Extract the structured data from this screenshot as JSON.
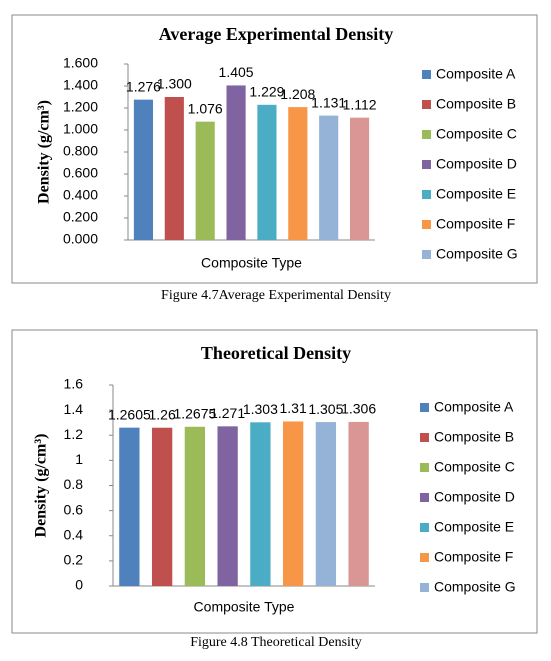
{
  "chart_data": [
    {
      "type": "bar",
      "title": "Average Experimental Density",
      "y_label": "Density (g/cm³)",
      "x_label": "Composite Type",
      "caption": "Figure 4.7Average Experimental Density",
      "ylim": [
        0,
        1.6
      ],
      "yticks": [
        {
          "value": 0,
          "label": "0.000"
        },
        {
          "value": 0.2,
          "label": "0.200"
        },
        {
          "value": 0.4,
          "label": "0.400"
        },
        {
          "value": 0.6,
          "label": "0.600"
        },
        {
          "value": 0.8,
          "label": "0.800"
        },
        {
          "value": 1.0,
          "label": "1.000"
        },
        {
          "value": 1.2,
          "label": "1.200"
        },
        {
          "value": 1.4,
          "label": "1.400"
        },
        {
          "value": 1.6,
          "label": "1.600"
        }
      ],
      "series": [
        {
          "name": "Composite A",
          "color": "#4f81bd",
          "values": [
            1.276
          ],
          "value_labels": [
            "1.276"
          ]
        },
        {
          "name": "Composite B",
          "color": "#c0504d",
          "values": [
            1.3
          ],
          "value_labels": [
            "1.300"
          ]
        },
        {
          "name": "Composite C",
          "color": "#9bbb59",
          "values": [
            1.076
          ],
          "value_labels": [
            "1.076"
          ]
        },
        {
          "name": "Composite D",
          "color": "#8064a2",
          "values": [
            1.405
          ],
          "value_labels": [
            "1.405"
          ]
        },
        {
          "name": "Composite E",
          "color": "#4bacc6",
          "values": [
            1.229
          ],
          "value_labels": [
            "1.229"
          ]
        },
        {
          "name": "Composite F",
          "color": "#f79646",
          "values": [
            1.208
          ],
          "value_labels": [
            "1.208"
          ]
        },
        {
          "name": "Composite G",
          "color": "#95b3d7",
          "values": [
            1.131
          ],
          "value_labels": [
            "1.131"
          ]
        },
        {
          "name": null,
          "color": "#d99694",
          "values": [
            1.112
          ],
          "value_labels": [
            "1.112"
          ]
        }
      ]
    },
    {
      "type": "bar",
      "title": "Theoretical Density",
      "y_label": "Density (g/cm³)",
      "x_label": "Composite Type",
      "caption": "Figure 4.8 Theoretical Density",
      "ylim": [
        0,
        1.6
      ],
      "yticks": [
        0,
        0.2,
        0.4,
        0.6,
        0.8,
        1,
        1.2,
        1.4,
        1.6
      ],
      "series": [
        {
          "name": "Composite A",
          "color": "#4f81bd",
          "values": [
            1.2605
          ]
        },
        {
          "name": "Composite B",
          "color": "#c0504d",
          "values": [
            1.26
          ]
        },
        {
          "name": "Composite C",
          "color": "#9bbb59",
          "values": [
            1.2675
          ]
        },
        {
          "name": "Composite D",
          "color": "#8064a2",
          "values": [
            1.271
          ]
        },
        {
          "name": "Composite E",
          "color": "#4bacc6",
          "values": [
            1.303
          ]
        },
        {
          "name": "Composite F",
          "color": "#f79646",
          "values": [
            1.31
          ]
        },
        {
          "name": "Composite G",
          "color": "#95b3d7",
          "values": [
            1.305
          ]
        },
        {
          "name": null,
          "color": "#d99694",
          "values": [
            1.306
          ]
        }
      ]
    }
  ]
}
